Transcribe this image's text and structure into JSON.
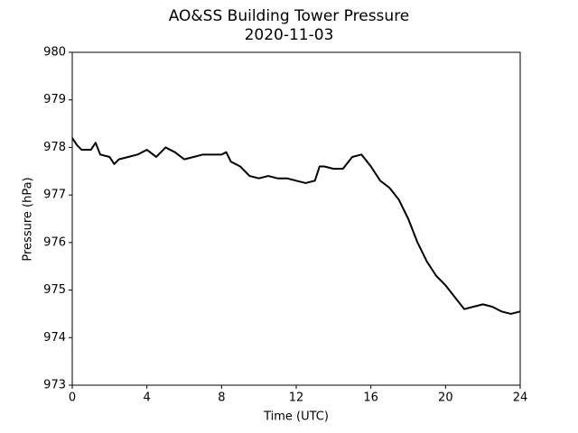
{
  "chart_data": {
    "type": "line",
    "title": "AO&SS Building Tower Pressure",
    "subtitle": "2020-11-03",
    "x_label": "Time (UTC)",
    "y_label": "Pressure (hPa)",
    "color": "#000000",
    "x": [
      0,
      0.25,
      0.5,
      1,
      1.25,
      1.5,
      2,
      2.25,
      2.5,
      3,
      3.5,
      4,
      4.5,
      5,
      5.5,
      6,
      6.5,
      7,
      7.5,
      8,
      8.25,
      8.5,
      9,
      9.5,
      10,
      10.5,
      11,
      11.5,
      12,
      12.5,
      13,
      13.25,
      13.5,
      14,
      14.5,
      15,
      15.5,
      16,
      16.5,
      17,
      17.5,
      18,
      18.5,
      19,
      19.5,
      20,
      20.5,
      21,
      21.5,
      22,
      22.5,
      23,
      23.5,
      24
    ],
    "values": [
      978.2,
      978.05,
      977.95,
      977.95,
      978.1,
      977.85,
      977.8,
      977.65,
      977.75,
      977.8,
      977.85,
      977.95,
      977.8,
      978.0,
      977.9,
      977.75,
      977.8,
      977.85,
      977.85,
      977.85,
      977.9,
      977.7,
      977.6,
      977.4,
      977.35,
      977.4,
      977.35,
      977.35,
      977.3,
      977.25,
      977.3,
      977.6,
      977.6,
      977.55,
      977.55,
      977.8,
      977.85,
      977.6,
      977.3,
      977.15,
      976.9,
      976.5,
      976.0,
      975.6,
      975.3,
      975.1,
      974.85,
      974.6,
      974.65,
      974.7,
      974.65,
      974.55,
      974.5,
      974.55
    ],
    "xlim": [
      0,
      24
    ],
    "xticks": [
      0,
      4,
      8,
      12,
      16,
      20,
      24
    ],
    "ylim": [
      973,
      980
    ],
    "yticks": [
      973,
      974,
      975,
      976,
      977,
      978,
      979,
      980
    ],
    "grid": false
  }
}
